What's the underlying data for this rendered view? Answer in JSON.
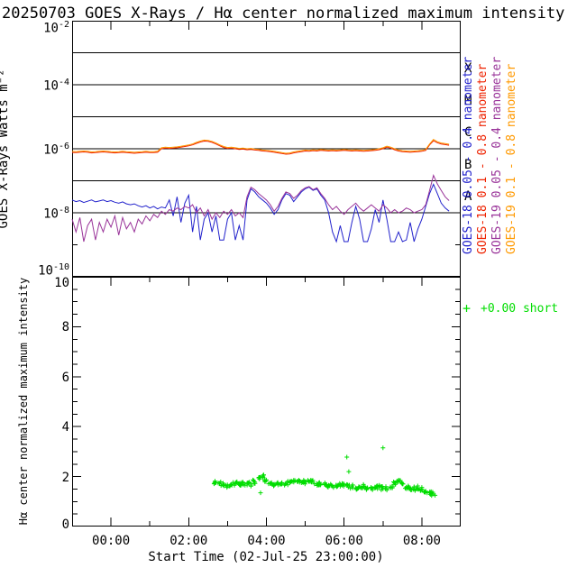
{
  "title": "20250703 GOES X-Rays / Hα center normalized maximum intensity",
  "top_panel": {
    "ylabel": "GOES X-Rays Watts m⁻²",
    "ytick_exponents": [
      "-2",
      "-4",
      "-6",
      "-8",
      "-10"
    ],
    "class_letters": [
      "X",
      "M",
      "C",
      "B",
      "A"
    ],
    "legend": [
      {
        "label": "GOES-18 0.05 - 0.4 nanometer",
        "color": "#2222cc"
      },
      {
        "label": "GOES-18 0.1 - 0.8 nanometer",
        "color": "#ee2200"
      },
      {
        "label": "GOES-19 0.05 - 0.4 nanometer",
        "color": "#993399"
      },
      {
        "label": "GOES-19 0.1 - 0.8 nanometer",
        "color": "#ff9900"
      }
    ]
  },
  "bottom_panel": {
    "ylabel": "Hα center normalized maximum intensity",
    "ytick_labels": [
      "10",
      "8",
      "6",
      "4",
      "2",
      "0"
    ],
    "legend_marker": "+",
    "legend_label": "+0.00 short",
    "legend_color": "#00dd00"
  },
  "xaxis": {
    "label": "Start Time (02-Jul-25 23:00:00)",
    "tick_labels": [
      "00:00",
      "02:00",
      "04:00",
      "06:00",
      "08:00"
    ]
  },
  "chart_data": [
    {
      "type": "line",
      "title": "GOES X-Rays",
      "ylabel": "GOES X-Rays Watts m⁻²",
      "yscale": "log10",
      "ylim_log10": [
        -10,
        -2
      ],
      "x_hours_from_midnight": {
        "start": -1.0,
        "step": 0.1,
        "count": 98
      },
      "gridlines_log10": [
        -3,
        -4,
        -5,
        -6,
        -7,
        -8
      ],
      "class_bands": [
        {
          "letter": "X",
          "center_log10": -3.5
        },
        {
          "letter": "M",
          "center_log10": -4.5
        },
        {
          "letter": "C",
          "center_log10": -5.5
        },
        {
          "letter": "B",
          "center_log10": -6.5
        },
        {
          "letter": "A",
          "center_log10": -7.5
        }
      ],
      "series": [
        {
          "name": "GOES-18 0.05 - 0.4 nanometer",
          "color": "#2222cc",
          "log10_values": [
            -7.6,
            -7.65,
            -7.62,
            -7.68,
            -7.64,
            -7.6,
            -7.66,
            -7.63,
            -7.6,
            -7.65,
            -7.62,
            -7.67,
            -7.7,
            -7.66,
            -7.72,
            -7.75,
            -7.72,
            -7.78,
            -7.82,
            -7.78,
            -7.85,
            -7.8,
            -7.88,
            -7.82,
            -7.85,
            -7.6,
            -8.1,
            -7.5,
            -8.3,
            -7.7,
            -7.45,
            -8.6,
            -7.8,
            -8.85,
            -8.2,
            -8.0,
            -8.6,
            -8.1,
            -8.85,
            -8.85,
            -8.2,
            -8.0,
            -8.85,
            -8.4,
            -8.85,
            -7.6,
            -7.25,
            -7.35,
            -7.5,
            -7.6,
            -7.7,
            -7.85,
            -8.05,
            -7.9,
            -7.6,
            -7.4,
            -7.45,
            -7.65,
            -7.5,
            -7.35,
            -7.25,
            -7.2,
            -7.3,
            -7.25,
            -7.45,
            -7.6,
            -8.0,
            -8.6,
            -8.9,
            -8.4,
            -8.9,
            -8.9,
            -8.3,
            -7.8,
            -8.2,
            -8.9,
            -8.9,
            -8.5,
            -7.9,
            -8.3,
            -7.6,
            -8.2,
            -8.9,
            -8.9,
            -8.6,
            -8.9,
            -8.85,
            -8.3,
            -8.9,
            -8.5,
            -8.2,
            -7.8,
            -7.4,
            -7.11,
            -7.4,
            -7.7,
            -7.85,
            -7.95
          ]
        },
        {
          "name": "GOES-18 0.1 - 0.8 nanometer",
          "color": "#ee2200",
          "log10_values": [
            -6.12,
            -6.12,
            -6.11,
            -6.1,
            -6.11,
            -6.13,
            -6.12,
            -6.11,
            -6.1,
            -6.11,
            -6.12,
            -6.13,
            -6.12,
            -6.11,
            -6.12,
            -6.13,
            -6.14,
            -6.13,
            -6.12,
            -6.11,
            -6.12,
            -6.12,
            -6.11,
            -6.0,
            -5.98,
            -5.99,
            -5.98,
            -5.97,
            -5.95,
            -5.93,
            -5.91,
            -5.88,
            -5.83,
            -5.79,
            -5.76,
            -5.77,
            -5.8,
            -5.85,
            -5.91,
            -5.96,
            -5.99,
            -5.98,
            -6.0,
            -6.02,
            -6.01,
            -6.03,
            -6.02,
            -6.04,
            -6.05,
            -6.07,
            -6.08,
            -6.09,
            -6.11,
            -6.13,
            -6.15,
            -6.17,
            -6.16,
            -6.13,
            -6.11,
            -6.09,
            -6.07,
            -6.08,
            -6.06,
            -6.07,
            -6.05,
            -6.06,
            -6.07,
            -6.06,
            -6.07,
            -6.06,
            -6.05,
            -6.06,
            -6.07,
            -6.06,
            -6.07,
            -6.08,
            -6.07,
            -6.06,
            -6.05,
            -6.03,
            -6.0,
            -5.95,
            -5.98,
            -6.03,
            -6.07,
            -6.09,
            -6.1,
            -6.11,
            -6.1,
            -6.09,
            -6.08,
            -6.05,
            -5.88,
            -5.75,
            -5.81,
            -5.85,
            -5.87,
            -5.89
          ]
        },
        {
          "name": "GOES-19 0.05 - 0.4 nanometer",
          "color": "#993399",
          "log10_values": [
            -8.2,
            -8.6,
            -8.15,
            -8.9,
            -8.4,
            -8.2,
            -8.85,
            -8.3,
            -8.6,
            -8.2,
            -8.45,
            -8.1,
            -8.7,
            -8.15,
            -8.5,
            -8.3,
            -8.6,
            -8.2,
            -8.35,
            -8.1,
            -8.25,
            -8.05,
            -8.15,
            -7.95,
            -8.05,
            -7.9,
            -7.95,
            -7.85,
            -7.9,
            -7.8,
            -7.85,
            -7.75,
            -8.0,
            -7.85,
            -8.1,
            -7.9,
            -8.2,
            -8.0,
            -8.15,
            -7.95,
            -8.05,
            -7.9,
            -8.1,
            -8.0,
            -8.15,
            -7.5,
            -7.2,
            -7.28,
            -7.4,
            -7.5,
            -7.6,
            -7.75,
            -7.95,
            -7.8,
            -7.55,
            -7.35,
            -7.4,
            -7.55,
            -7.45,
            -7.3,
            -7.22,
            -7.18,
            -7.28,
            -7.22,
            -7.4,
            -7.55,
            -7.75,
            -7.9,
            -7.8,
            -7.95,
            -8.05,
            -7.9,
            -7.8,
            -7.7,
            -7.85,
            -7.95,
            -7.85,
            -7.75,
            -7.85,
            -7.95,
            -7.75,
            -7.85,
            -8.0,
            -7.9,
            -8.0,
            -7.95,
            -7.85,
            -7.9,
            -8.0,
            -7.95,
            -7.9,
            -7.75,
            -7.3,
            -6.83,
            -7.1,
            -7.3,
            -7.5,
            -7.62
          ]
        },
        {
          "name": "GOES-19 0.1 - 0.8 nanometer",
          "color": "#ff9900",
          "log10_values": [
            -6.08,
            -6.09,
            -6.08,
            -6.07,
            -6.08,
            -6.1,
            -6.09,
            -6.08,
            -6.07,
            -6.08,
            -6.09,
            -6.1,
            -6.09,
            -6.08,
            -6.09,
            -6.1,
            -6.11,
            -6.1,
            -6.09,
            -6.08,
            -6.09,
            -6.09,
            -6.08,
            -5.97,
            -5.95,
            -5.96,
            -5.95,
            -5.94,
            -5.92,
            -5.9,
            -5.88,
            -5.85,
            -5.8,
            -5.76,
            -5.73,
            -5.74,
            -5.77,
            -5.82,
            -5.88,
            -5.93,
            -5.96,
            -5.95,
            -5.97,
            -5.99,
            -5.98,
            -6.0,
            -5.99,
            -6.01,
            -6.02,
            -6.04,
            -6.05,
            -6.06,
            -6.08,
            -6.1,
            -6.12,
            -6.14,
            -6.13,
            -6.1,
            -6.08,
            -6.06,
            -6.04,
            -6.05,
            -6.03,
            -6.04,
            -6.02,
            -6.03,
            -6.04,
            -6.03,
            -6.04,
            -6.03,
            -6.02,
            -6.03,
            -6.04,
            -6.03,
            -6.04,
            -6.05,
            -6.04,
            -6.03,
            -6.02,
            -6.0,
            -5.97,
            -5.92,
            -5.95,
            -6.0,
            -6.04,
            -6.06,
            -6.07,
            -6.08,
            -6.07,
            -6.06,
            -6.05,
            -6.02,
            -5.85,
            -5.71,
            -5.78,
            -5.82,
            -5.84,
            -5.86
          ]
        }
      ]
    },
    {
      "type": "scatter",
      "marker": "+",
      "color": "#00dd00",
      "ylabel": "Hα center normalized maximum intensity",
      "ylim": [
        0,
        10
      ],
      "legend": "+0.00 short",
      "trend": {
        "t_start": 2.7,
        "t_step": 0.1,
        "values": [
          1.75,
          1.72,
          1.65,
          1.62,
          1.68,
          1.72,
          1.7,
          1.75,
          1.72,
          1.7,
          1.78,
          1.95,
          2.0,
          1.85,
          1.72,
          1.65,
          1.7,
          1.75,
          1.72,
          1.8,
          1.85,
          1.82,
          1.75,
          1.78,
          1.8,
          1.78,
          1.72,
          1.7,
          1.68,
          1.65,
          1.62,
          1.65,
          1.68,
          1.7,
          1.65,
          1.6,
          1.55,
          1.58,
          1.6,
          1.55,
          1.52,
          1.55,
          1.58,
          1.55,
          1.52,
          1.55,
          1.75,
          1.85,
          1.7,
          1.58,
          1.55,
          1.52,
          1.55,
          1.5,
          1.42,
          1.35,
          1.3
        ]
      },
      "outliers": [
        {
          "t": 6.07,
          "v": 2.78
        },
        {
          "t": 6.12,
          "v": 2.2
        },
        {
          "t": 7.0,
          "v": 3.15
        },
        {
          "t": 3.85,
          "v": 1.35
        }
      ]
    }
  ]
}
